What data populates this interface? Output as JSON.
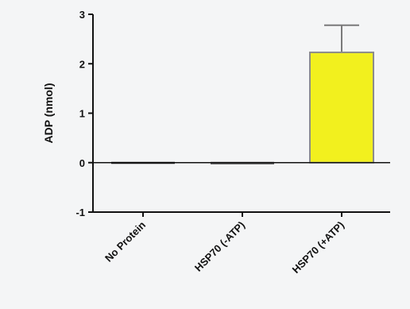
{
  "chart_data": {
    "type": "bar",
    "title": "",
    "xlabel": "",
    "ylabel": "ADP (nmol)",
    "ylim": [
      -1,
      3
    ],
    "yticks": [
      -1,
      0,
      1,
      2,
      3
    ],
    "grid": false,
    "categories": [
      "No Protein",
      "HSP70 (-ATP)",
      "HSP70 (+ATP)"
    ],
    "values": [
      -0.03,
      -0.05,
      2.23
    ],
    "error_up": [
      0.06,
      0.02,
      0.55
    ],
    "bar_colors": [
      "#1a1a1a",
      "#555555",
      "#f2f01e"
    ],
    "edge_color": "#8c8c8c"
  }
}
